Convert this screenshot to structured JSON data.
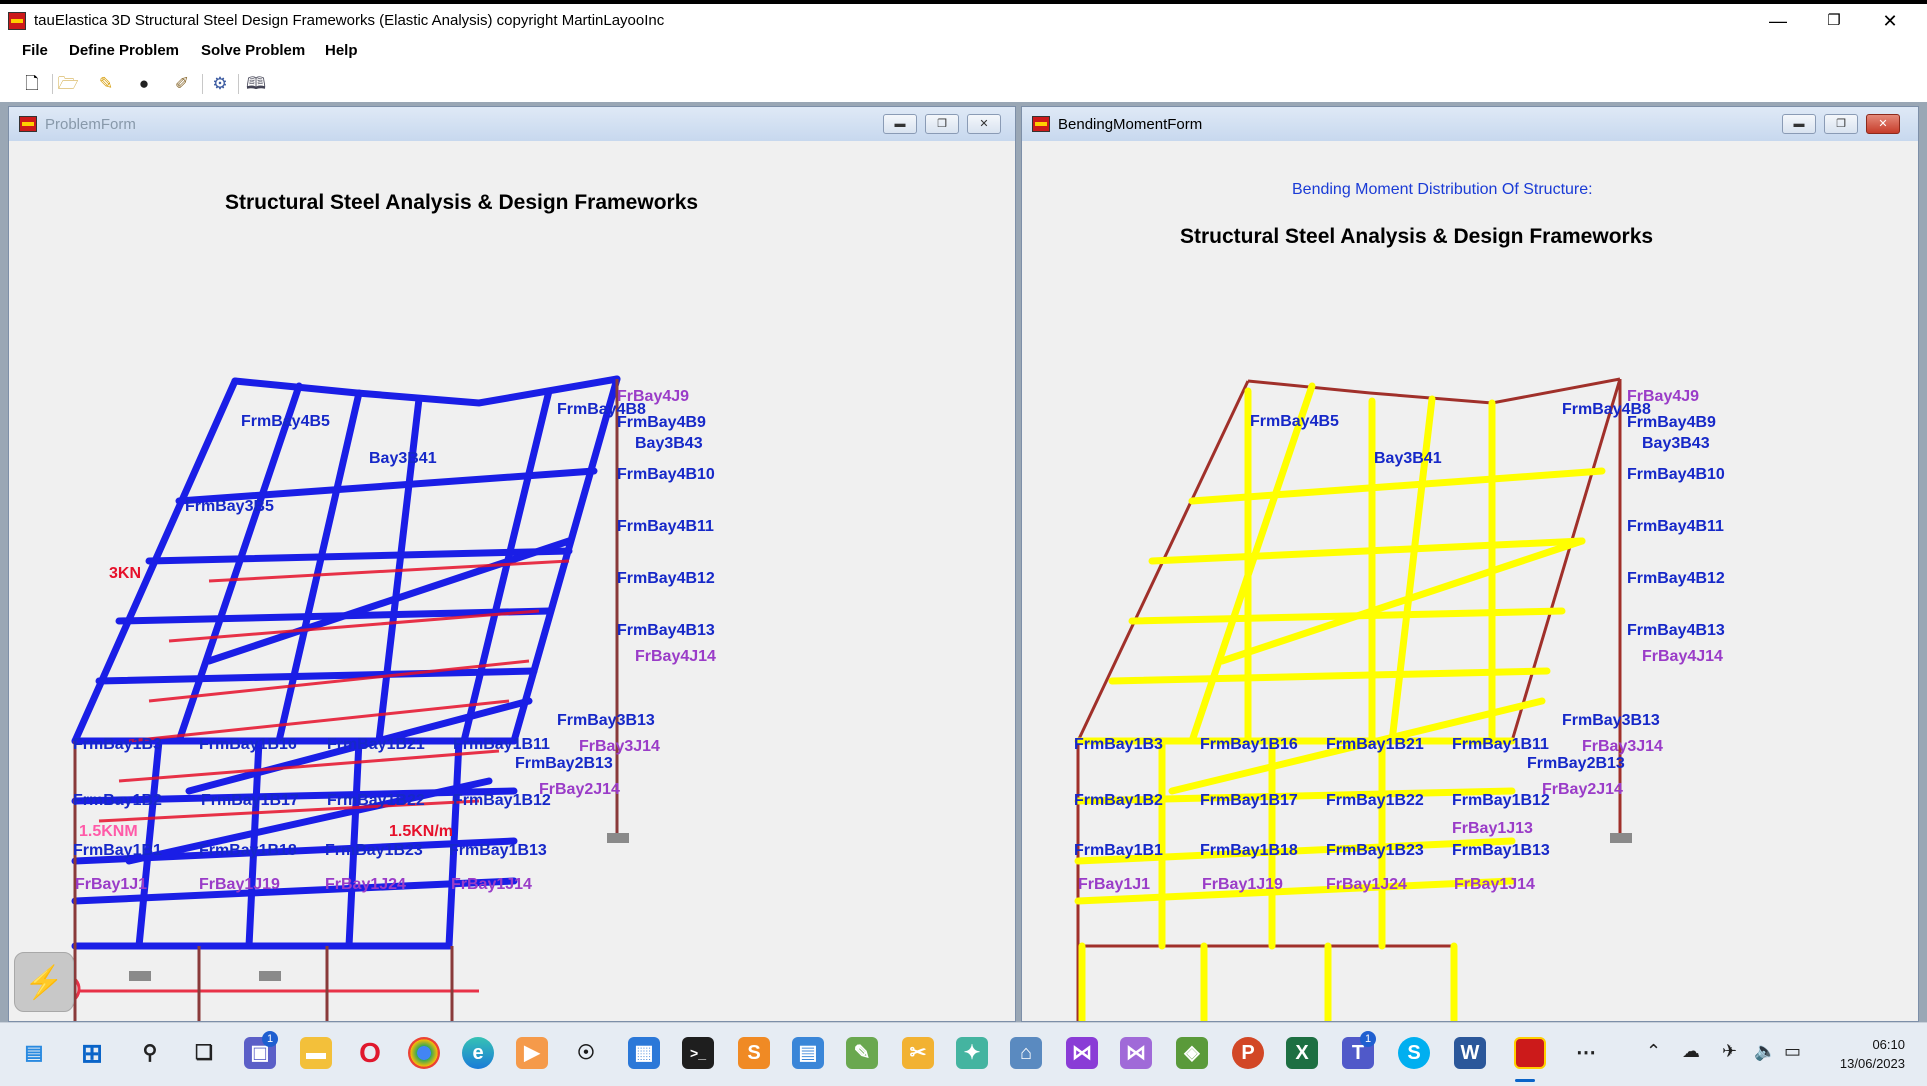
{
  "window": {
    "title": "tauElastica 3D Structural Steel Design Frameworks (Elastic Analysis) copyright MartinLayooInc",
    "minimize": "—",
    "restore": "❐",
    "close": "✕"
  },
  "menu": [
    "File",
    "Define Problem",
    "Solve Problem",
    "Help"
  ],
  "toolbar_icons": [
    "new-file-icon",
    "open-folder-icon",
    "pencil-icon",
    "mouse-icon",
    "brush-icon",
    "gear-icon",
    "book-icon"
  ],
  "problem_form": {
    "title": "ProblemForm",
    "heading": "Structural Steel Analysis & Design Frameworks",
    "labels": [
      {
        "text": "FrBay4J9",
        "kind": "purple"
      },
      {
        "text": "FrmBay4B8",
        "kind": "blue"
      },
      {
        "text": "FrmBay4B5",
        "kind": "blue"
      },
      {
        "text": "FrmBay4B9",
        "kind": "blue"
      },
      {
        "text": "Bay3B43",
        "kind": "blue"
      },
      {
        "text": "Bay3B41",
        "kind": "blue"
      },
      {
        "text": "FrmBay4B10",
        "kind": "blue"
      },
      {
        "text": "FrmBay3B5",
        "kind": "blue"
      },
      {
        "text": "FrmBay4B11",
        "kind": "blue"
      },
      {
        "text": "FrmBay4B12",
        "kind": "blue"
      },
      {
        "text": "FrmBay4B13",
        "kind": "blue"
      },
      {
        "text": "FrBay4J14",
        "kind": "purple"
      },
      {
        "text": "FrmBay3B13",
        "kind": "blue"
      },
      {
        "text": "FrBay3J14",
        "kind": "purple"
      },
      {
        "text": "FrmBay2B13",
        "kind": "blue"
      },
      {
        "text": "FrBay2J14",
        "kind": "purple"
      },
      {
        "text": "FrmBay1B2",
        "kind": "blue"
      },
      {
        "text": "FrmBay1B17",
        "kind": "blue"
      },
      {
        "text": "FrmBay1B22",
        "kind": "blue"
      },
      {
        "text": "FrmBay1B12",
        "kind": "blue"
      },
      {
        "text": "FrmBay1B1",
        "kind": "blue"
      },
      {
        "text": "FrmBay1B18",
        "kind": "blue"
      },
      {
        "text": "FrmBay1B23",
        "kind": "blue"
      },
      {
        "text": "FrmBay1B13",
        "kind": "blue"
      },
      {
        "text": "FrBay1J1",
        "kind": "purple"
      },
      {
        "text": "FrBay1J19",
        "kind": "purple"
      },
      {
        "text": "FrBay1J24",
        "kind": "purple"
      },
      {
        "text": "FrBay1J14",
        "kind": "purple"
      },
      {
        "text": "FrmBay1B3",
        "kind": "blue"
      },
      {
        "text": "FrmBay1B16",
        "kind": "blue"
      },
      {
        "text": "FrmBay1B21",
        "kind": "blue"
      },
      {
        "text": "FrmBay1B11",
        "kind": "blue"
      },
      {
        "text": "3KN",
        "kind": "red"
      },
      {
        "text": "1.5KN/m",
        "kind": "red"
      },
      {
        "text": "1.5KNM",
        "kind": "red"
      }
    ]
  },
  "bending_form": {
    "title": "BendingMomentForm",
    "subheading": "Bending Moment Distribution Of Structure:",
    "heading": "Structural Steel Analysis & Design Frameworks",
    "labels": [
      {
        "text": "FrBay4J9",
        "kind": "purple"
      },
      {
        "text": "FrmBay4B8",
        "kind": "blue"
      },
      {
        "text": "FrmBay4B5",
        "kind": "blue"
      },
      {
        "text": "FrmBay4B9",
        "kind": "blue"
      },
      {
        "text": "Bay3B43",
        "kind": "blue"
      },
      {
        "text": "Bay3B41",
        "kind": "blue"
      },
      {
        "text": "FrmBay4B10",
        "kind": "blue"
      },
      {
        "text": "FrmBay4B11",
        "kind": "blue"
      },
      {
        "text": "FrmBay4B12",
        "kind": "blue"
      },
      {
        "text": "FrmBay4B13",
        "kind": "blue"
      },
      {
        "text": "FrBay4J14",
        "kind": "purple"
      },
      {
        "text": "FrmBay3B13",
        "kind": "blue"
      },
      {
        "text": "FrBay3J14",
        "kind": "purple"
      },
      {
        "text": "FrmBay2B13",
        "kind": "blue"
      },
      {
        "text": "FrBay2J14",
        "kind": "purple"
      },
      {
        "text": "FrmBay1B2",
        "kind": "blue"
      },
      {
        "text": "FrmBay1B17",
        "kind": "blue"
      },
      {
        "text": "FrmBay1B22",
        "kind": "blue"
      },
      {
        "text": "FrmBay1B12",
        "kind": "blue"
      },
      {
        "text": "FrBay1J13",
        "kind": "purple"
      },
      {
        "text": "FrmBay1B1",
        "kind": "blue"
      },
      {
        "text": "FrmBay1B18",
        "kind": "blue"
      },
      {
        "text": "FrmBay1B23",
        "kind": "blue"
      },
      {
        "text": "FrmBay1B13",
        "kind": "blue"
      },
      {
        "text": "FrBay1J1",
        "kind": "purple"
      },
      {
        "text": "FrBay1J19",
        "kind": "purple"
      },
      {
        "text": "FrBay1J24",
        "kind": "purple"
      },
      {
        "text": "FrBay1J14",
        "kind": "purple"
      },
      {
        "text": "FrmBay1B3",
        "kind": "blue"
      },
      {
        "text": "FrmBay1B16",
        "kind": "blue"
      },
      {
        "text": "FrmBay1B21",
        "kind": "blue"
      },
      {
        "text": "FrmBay1B11",
        "kind": "blue"
      }
    ]
  },
  "taskbar": {
    "icons": [
      "widgets-icon",
      "start-icon",
      "search-icon",
      "task-view-icon",
      "chat-icon",
      "file-explorer-icon",
      "opera-icon",
      "chrome-icon",
      "edge-icon",
      "media-player-icon",
      "accessibility-icon",
      "store-icon",
      "terminal-icon",
      "sublime-icon",
      "notepad-icon",
      "paint-icon",
      "snip-icon",
      "tools-icon",
      "network-icon",
      "visual-studio-icon",
      "visual-studio-2-icon",
      "layers-icon",
      "powerpoint-icon",
      "excel-icon",
      "teams-icon",
      "skype-icon",
      "word-icon",
      "tauelastica-icon",
      "more-icon"
    ],
    "badges": {
      "chat": "1",
      "teams": "1"
    },
    "clock_time": "06:10",
    "clock_date": "13/06/2023"
  },
  "colors": {
    "frame_blue": "#1a1ee6",
    "load_red": "#e6102a",
    "frame_maroon": "#a0302a",
    "moment_yellow": "#ffff00",
    "support_gray": "#8a8a8a"
  }
}
